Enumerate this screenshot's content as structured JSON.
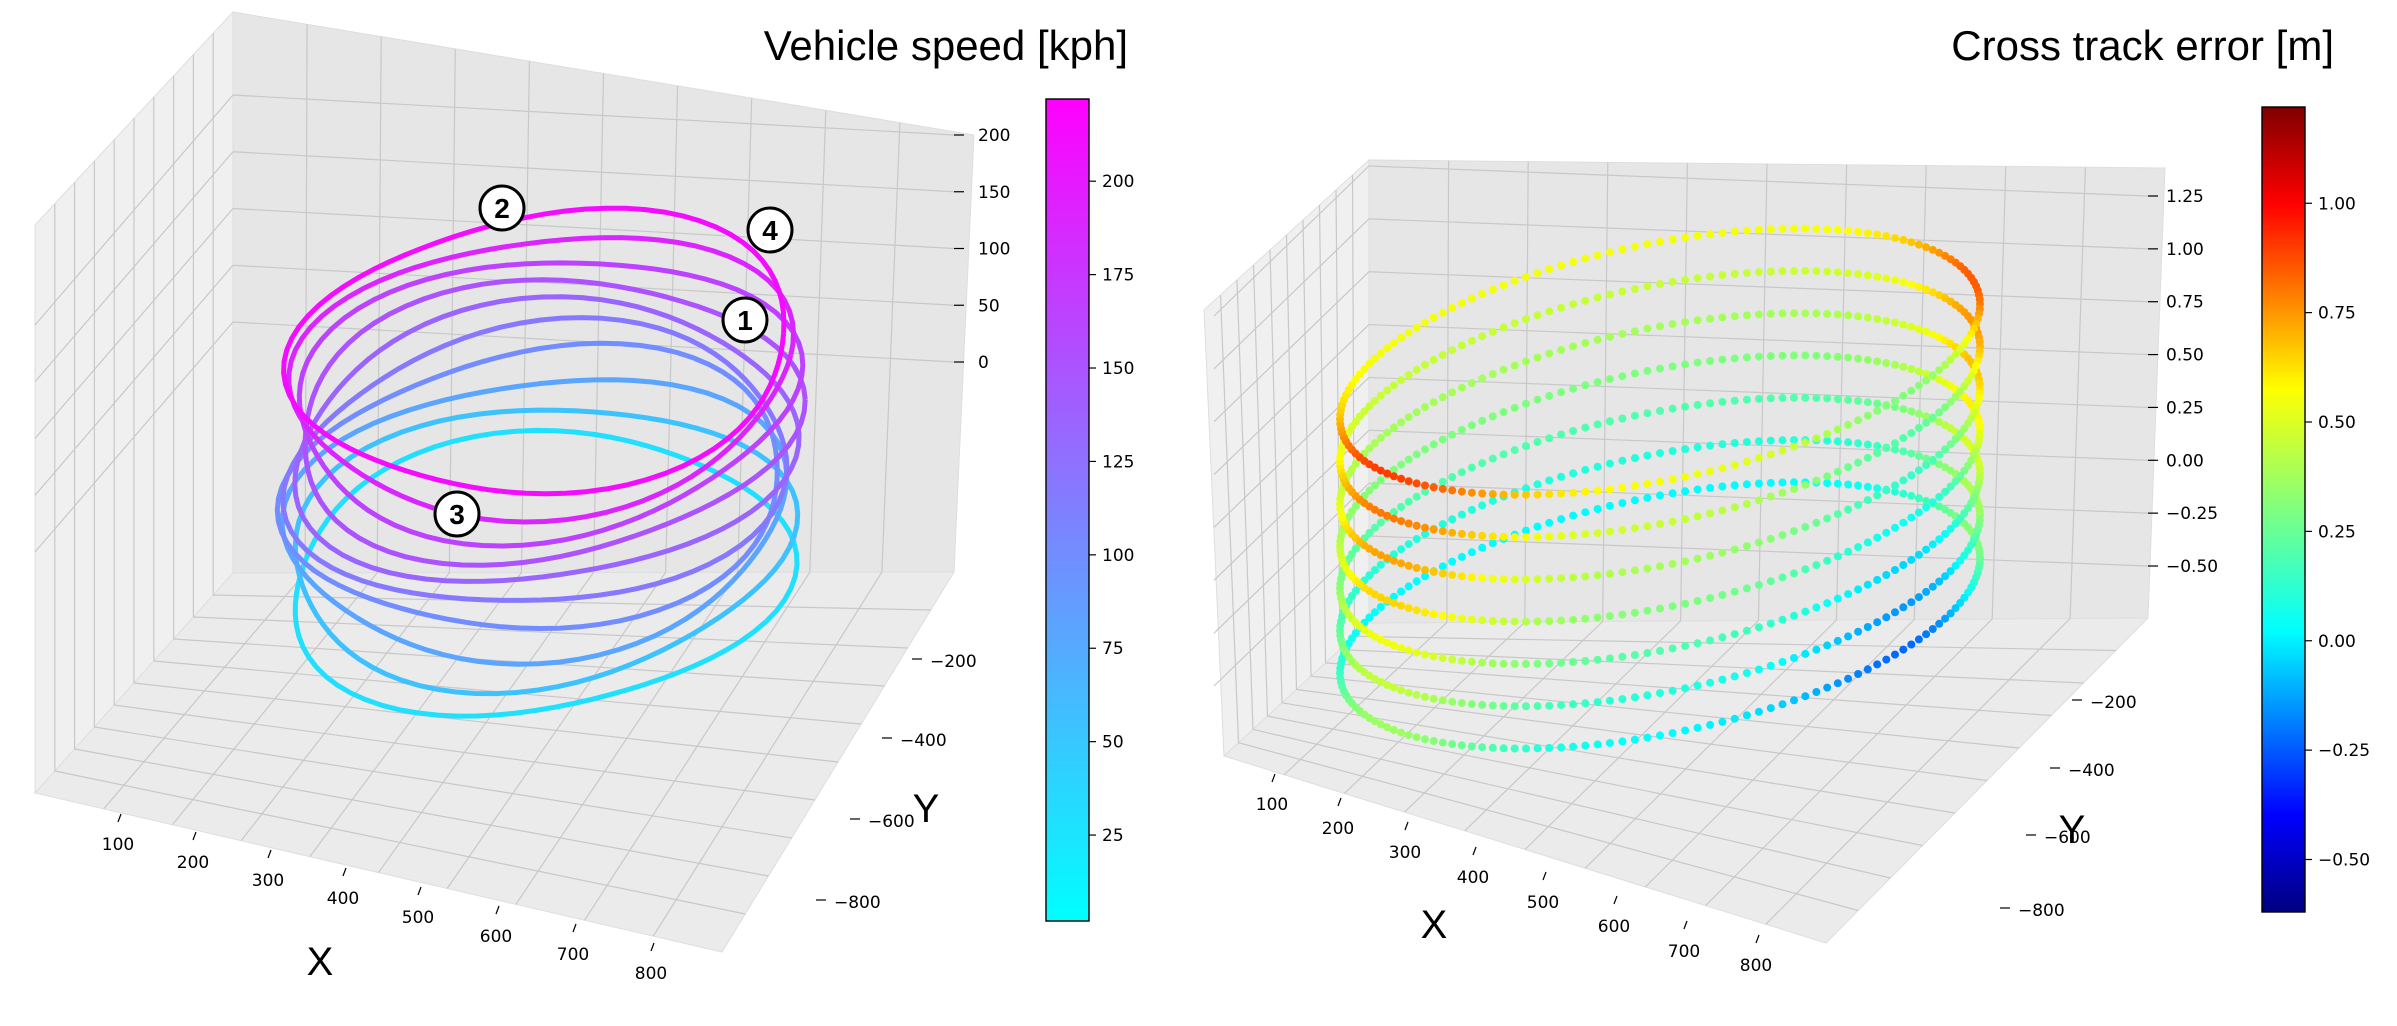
{
  "chart_data": [
    {
      "type": "line3d",
      "title": "Vehicle speed [kph]",
      "xlabel": "X",
      "ylabel": "Y",
      "xticks": [
        100,
        200,
        300,
        400,
        500,
        600,
        700,
        800
      ],
      "yticks": [
        -200,
        -400,
        -600,
        -800
      ],
      "zticks": [
        0,
        50,
        100,
        150,
        200
      ],
      "colorbar": {
        "cmap": "cool",
        "range": [
          2,
          222
        ],
        "ticks": [
          25,
          50,
          75,
          100,
          125,
          150,
          175,
          200
        ],
        "colors": [
          "#00ffff",
          "#ff00ff"
        ]
      },
      "annotations": [
        "1",
        "2",
        "3",
        "4"
      ],
      "laps": [
        {
          "z": 20,
          "speed": 30
        },
        {
          "z": 45,
          "speed": 55
        },
        {
          "z": 70,
          "speed": 80
        },
        {
          "z": 95,
          "speed": 100
        },
        {
          "z": 115,
          "speed": 118
        },
        {
          "z": 135,
          "speed": 135
        },
        {
          "z": 155,
          "speed": 150
        },
        {
          "z": 175,
          "speed": 165
        },
        {
          "z": 195,
          "speed": 190
        },
        {
          "z": 215,
          "speed": 212
        }
      ]
    },
    {
      "type": "scatter3d",
      "title": "Cross track error [m]",
      "xlabel": "X",
      "ylabel": "Y",
      "xticks": [
        100,
        200,
        300,
        400,
        500,
        600,
        700,
        800
      ],
      "yticks": [
        -200,
        -400,
        -600,
        -800
      ],
      "zticks": [
        -0.5,
        -0.25,
        0.0,
        0.25,
        0.5,
        0.75,
        1.0,
        1.25
      ],
      "zticklabels": [
        "−0.50",
        "−0.25",
        "0.00",
        "0.25",
        "0.50",
        "0.75",
        "1.00",
        "1.25"
      ],
      "colorbar": {
        "cmap": "jet",
        "range": [
          -0.62,
          1.22
        ],
        "ticks": [
          -0.5,
          -0.25,
          0.0,
          0.25,
          0.5,
          0.75,
          1.0
        ],
        "ticklabels": [
          "−0.50",
          "−0.25",
          "0.00",
          "0.25",
          "0.50",
          "0.75",
          "1.00"
        ]
      },
      "layers": [
        {
          "z": -0.45,
          "base": 0.02
        },
        {
          "z": -0.25,
          "base": 0.1
        },
        {
          "z": -0.05,
          "base": 0.2
        },
        {
          "z": 0.15,
          "base": 0.3
        },
        {
          "z": 0.35,
          "base": 0.38
        },
        {
          "z": 0.55,
          "base": 0.45
        },
        {
          "z": 0.75,
          "base": 0.55
        }
      ]
    }
  ]
}
